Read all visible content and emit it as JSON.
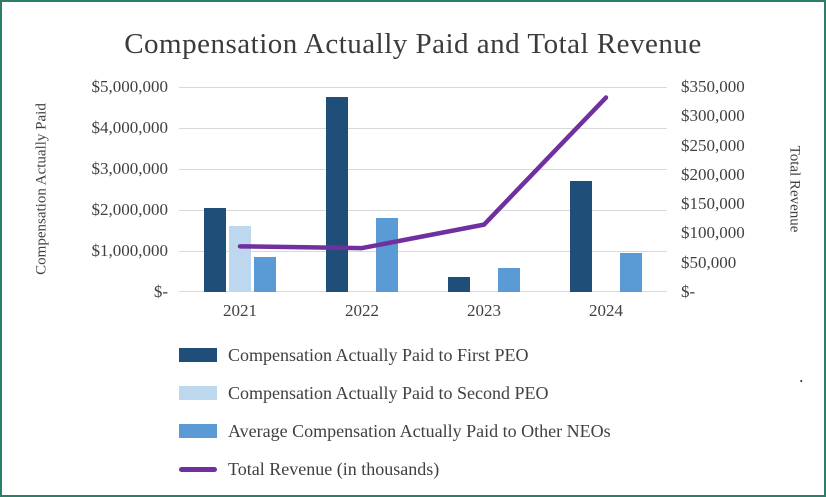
{
  "title": "Compensation Actually Paid and Total Revenue",
  "stray_text": ".",
  "colors": {
    "frame_border": "#2E7D6A",
    "gridline": "#D9D9D9",
    "title_text": "#3B3B3B",
    "axis_text": "#404040"
  },
  "chart_data": {
    "type": "combo",
    "title": "Compensation Actually Paid and Total Revenue",
    "categories": [
      "2021",
      "2022",
      "2023",
      "2024"
    ],
    "grid": true,
    "legend_position": "bottom-left",
    "left_axis": {
      "label": "Compensation Actually Paid",
      "min": 0,
      "max": 5000000,
      "step": 1000000,
      "tick_labels": [
        "$-",
        "$1,000,000",
        "$2,000,000",
        "$3,000,000",
        "$4,000,000",
        "$5,000,000"
      ]
    },
    "right_axis": {
      "label": "Total Revenue",
      "min": 0,
      "max": 350000,
      "step": 50000,
      "tick_labels": [
        "$-",
        "$50,000",
        "$100,000",
        "$150,000",
        "$200,000",
        "$250,000",
        "$300,000",
        "$350,000"
      ]
    },
    "series": [
      {
        "name": "Compensation Actually Paid to First PEO",
        "kind": "bar",
        "axis": "left",
        "color": "#1F4E79",
        "values": [
          2050000,
          4750000,
          375000,
          2700000
        ]
      },
      {
        "name": "Compensation Actually Paid to Second PEO",
        "kind": "bar",
        "axis": "left",
        "color": "#BDD7EE",
        "values": [
          1600000,
          null,
          null,
          null
        ]
      },
      {
        "name": "Average Compensation Actually Paid to Other NEOs",
        "kind": "bar",
        "axis": "left",
        "color": "#5B9BD5",
        "values": [
          850000,
          1800000,
          575000,
          950000
        ]
      },
      {
        "name": "Total Revenue (in thousands)",
        "kind": "line",
        "axis": "right",
        "color": "#7030A0",
        "values": [
          78000,
          75000,
          115000,
          332000
        ]
      }
    ]
  }
}
